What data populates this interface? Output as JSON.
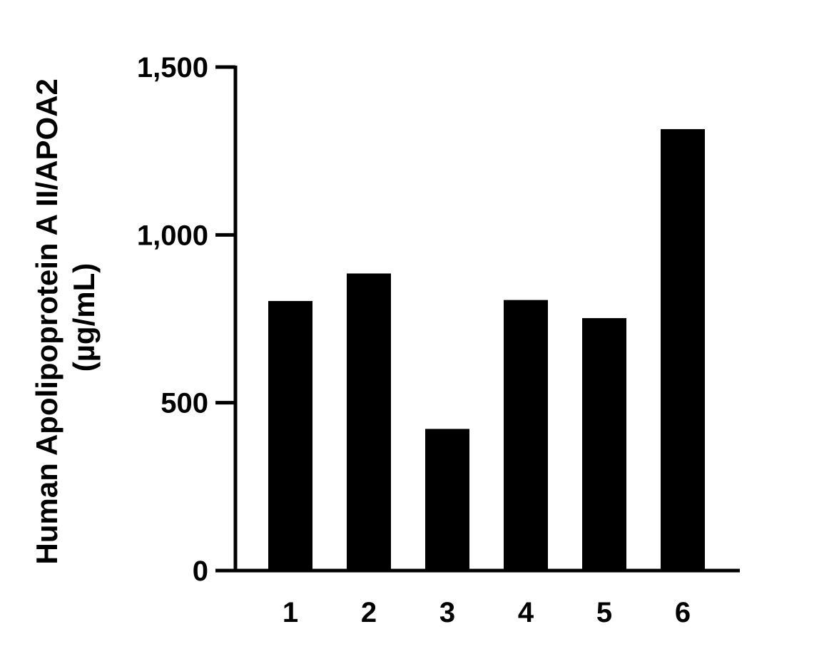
{
  "chart_data": {
    "type": "bar",
    "title": "",
    "xlabel": "",
    "ylabel_lines": [
      "Human Apolipoprotein A II/APOA2",
      "(µg/mL)"
    ],
    "categories": [
      "1",
      "2",
      "3",
      "4",
      "5",
      "6"
    ],
    "values": [
      803,
      885,
      422,
      806,
      752,
      1315
    ],
    "ylim": [
      0,
      1500
    ],
    "yticks": [
      0,
      500,
      1000,
      1500
    ],
    "ytick_labels": [
      "0",
      "500",
      "1,000",
      "1,500"
    ],
    "bar_color": "#000000",
    "axis_color": "#000000",
    "grid": false,
    "legend": "none"
  }
}
